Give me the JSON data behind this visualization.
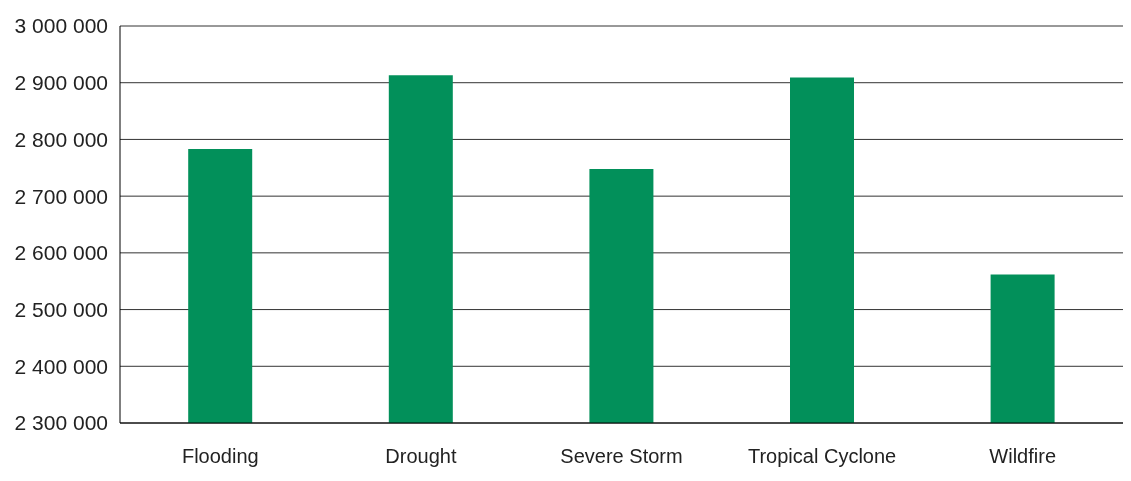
{
  "chart_data": {
    "type": "bar",
    "categories": [
      "Flooding",
      "Drought",
      "Severe Storm",
      "Tropical Cyclone",
      "Wildfire"
    ],
    "values": [
      2783000,
      2913000,
      2748000,
      2909000,
      2562000
    ],
    "color": "#02905a",
    "ylim": [
      2300000,
      3000000
    ],
    "yticks": [
      {
        "value": 2300000,
        "label": "2 300 000"
      },
      {
        "value": 2400000,
        "label": "2 400 000"
      },
      {
        "value": 2500000,
        "label": "2 500 000"
      },
      {
        "value": 2600000,
        "label": "2 600 000"
      },
      {
        "value": 2700000,
        "label": "2 700 000"
      },
      {
        "value": 2800000,
        "label": "2 800 000"
      },
      {
        "value": 2900000,
        "label": "2 900 000"
      },
      {
        "value": 3000000,
        "label": "3 000 000"
      }
    ],
    "grid": "y"
  }
}
